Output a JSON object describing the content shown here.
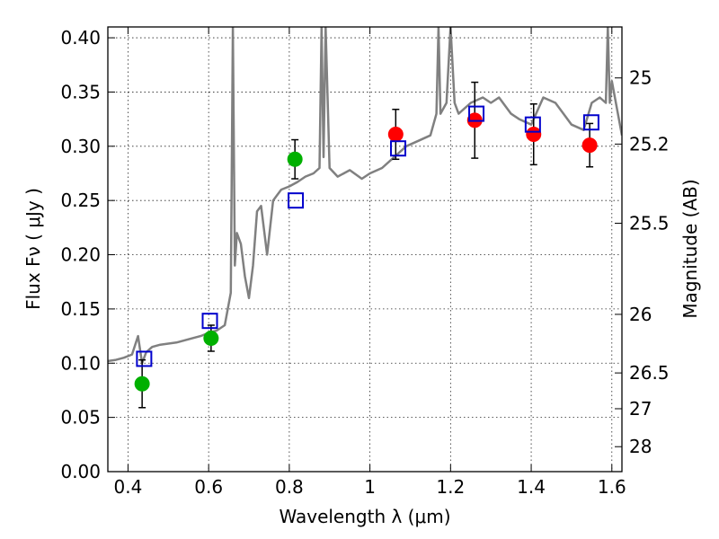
{
  "chart_data": {
    "type": "scatter",
    "xlabel": "Wavelength  λ (μm)",
    "ylabel": "Flux  Fν  ( μJy )",
    "y2label": "Magnitude (AB)",
    "xlim": [
      0.35,
      1.625
    ],
    "ylim": [
      0.0,
      0.41
    ],
    "grid": true,
    "x_ticks": [
      0.4,
      0.6,
      0.8,
      1.0,
      1.2,
      1.4,
      1.6
    ],
    "x_tick_labels": [
      "0.4",
      "0.6",
      "0.8",
      "1",
      "1.2",
      "1.4",
      "1.6"
    ],
    "y_ticks": [
      0.0,
      0.05,
      0.1,
      0.15,
      0.2,
      0.25,
      0.3,
      0.35,
      0.4
    ],
    "y_tick_labels": [
      "0.00",
      "0.05",
      "0.10",
      "0.15",
      "0.20",
      "0.25",
      "0.30",
      "0.35",
      "0.40"
    ],
    "y2_ticks": [
      {
        "label": "25",
        "flux": 0.363
      },
      {
        "label": "25.2",
        "flux": 0.302
      },
      {
        "label": "25.5",
        "flux": 0.229
      },
      {
        "label": "26",
        "flux": 0.145
      },
      {
        "label": "26.5",
        "flux": 0.091
      },
      {
        "label": "27",
        "flux": 0.058
      },
      {
        "label": "28",
        "flux": 0.023
      }
    ],
    "model_spectrum": {
      "color": "#808080",
      "x": [
        0.35,
        0.37,
        0.39,
        0.41,
        0.425,
        0.435,
        0.445,
        0.46,
        0.48,
        0.5,
        0.52,
        0.55,
        0.58,
        0.6,
        0.62,
        0.64,
        0.655,
        0.66,
        0.665,
        0.67,
        0.68,
        0.69,
        0.7,
        0.71,
        0.72,
        0.73,
        0.745,
        0.76,
        0.77,
        0.78,
        0.8,
        0.82,
        0.84,
        0.86,
        0.875,
        0.88,
        0.885,
        0.89,
        0.9,
        0.92,
        0.95,
        0.98,
        1.0,
        1.03,
        1.06,
        1.09,
        1.12,
        1.15,
        1.165,
        1.17,
        1.175,
        1.19,
        1.2,
        1.21,
        1.22,
        1.25,
        1.28,
        1.3,
        1.32,
        1.35,
        1.37,
        1.4,
        1.43,
        1.46,
        1.5,
        1.53,
        1.55,
        1.57,
        1.585,
        1.59,
        1.595,
        1.6,
        1.625
      ],
      "y": [
        0.102,
        0.103,
        0.105,
        0.108,
        0.125,
        0.1,
        0.11,
        0.115,
        0.117,
        0.118,
        0.119,
        0.122,
        0.125,
        0.128,
        0.13,
        0.135,
        0.165,
        0.41,
        0.19,
        0.22,
        0.21,
        0.18,
        0.16,
        0.19,
        0.24,
        0.245,
        0.2,
        0.25,
        0.255,
        0.26,
        0.263,
        0.267,
        0.272,
        0.275,
        0.28,
        0.41,
        0.29,
        0.41,
        0.28,
        0.272,
        0.278,
        0.27,
        0.275,
        0.28,
        0.29,
        0.3,
        0.305,
        0.31,
        0.33,
        0.41,
        0.33,
        0.34,
        0.41,
        0.34,
        0.33,
        0.34,
        0.345,
        0.34,
        0.345,
        0.33,
        0.325,
        0.32,
        0.345,
        0.34,
        0.32,
        0.315,
        0.34,
        0.345,
        0.34,
        0.41,
        0.34,
        0.36,
        0.31
      ]
    },
    "series": [
      {
        "marker": "circle",
        "color": "#00b000",
        "points": [
          {
            "x": 0.435,
            "y": 0.081,
            "err": 0.022
          },
          {
            "x": 0.606,
            "y": 0.123,
            "err": 0.012
          },
          {
            "x": 0.814,
            "y": 0.288,
            "err": 0.018
          }
        ]
      },
      {
        "marker": "circle",
        "color": "#ff0000",
        "points": [
          {
            "x": 1.064,
            "y": 0.311,
            "err": 0.023
          },
          {
            "x": 1.26,
            "y": 0.324,
            "err": 0.035
          },
          {
            "x": 1.406,
            "y": 0.311,
            "err": 0.028
          },
          {
            "x": 1.545,
            "y": 0.301,
            "err": 0.02
          }
        ]
      },
      {
        "marker": "open-square",
        "color": "#0000cc",
        "points": [
          {
            "x": 0.44,
            "y": 0.104
          },
          {
            "x": 0.603,
            "y": 0.139
          },
          {
            "x": 0.816,
            "y": 0.25
          },
          {
            "x": 1.07,
            "y": 0.298
          },
          {
            "x": 1.264,
            "y": 0.33
          },
          {
            "x": 1.404,
            "y": 0.32
          },
          {
            "x": 1.549,
            "y": 0.322
          }
        ]
      }
    ]
  }
}
